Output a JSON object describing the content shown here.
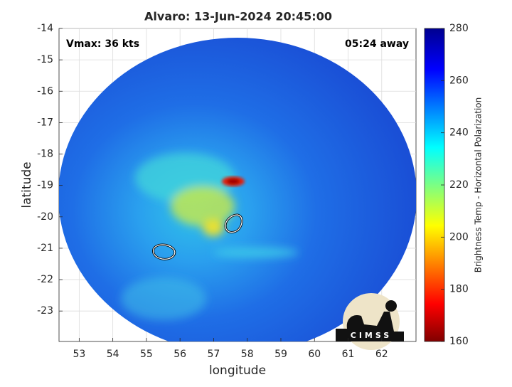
{
  "chart_data": {
    "type": "image",
    "title": "Alvaro: 13-Jun-2024 20:45:00",
    "annotations": [
      "Vmax: 36 kts",
      "05:24 away"
    ],
    "xlabel": "longitude",
    "ylabel": "latitude",
    "xlim": [
      52.4,
      63.02
    ],
    "xticks": [
      53,
      54,
      55,
      56,
      57,
      58,
      59,
      60,
      61,
      62
    ],
    "ylim": [
      -23.97,
      -14
    ],
    "yticks": [
      -14,
      -15,
      -16,
      -17,
      -18,
      -19,
      -20,
      -21,
      -22,
      -23
    ],
    "grid": true,
    "colorbar": {
      "label": "Brightness Temp - Horizontal Polarization",
      "lim": [
        160,
        280
      ],
      "ticks": [
        160,
        180,
        200,
        220,
        240,
        260,
        280
      ],
      "colormap": "jet"
    },
    "logo": "CIMSS"
  }
}
